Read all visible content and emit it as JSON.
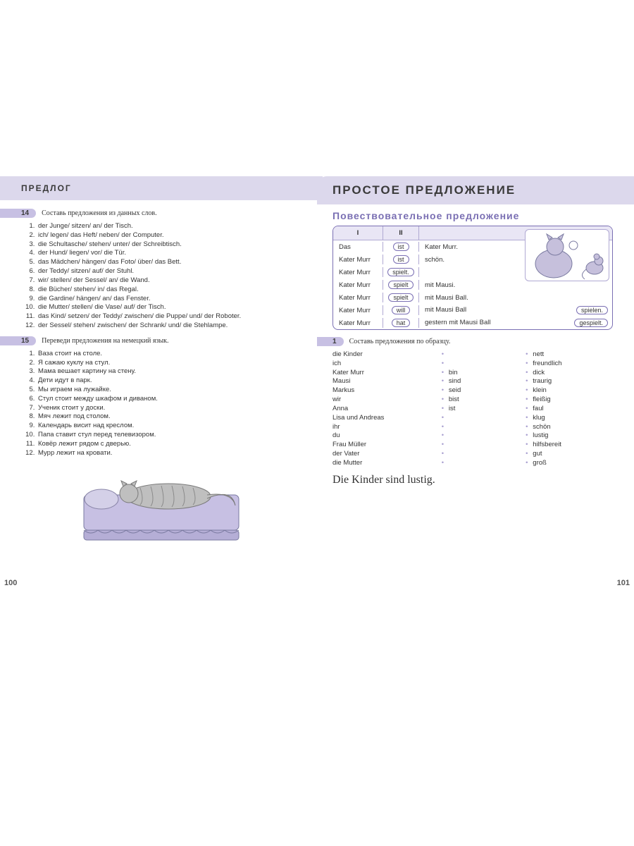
{
  "colors": {
    "band": "#dcd8ec",
    "pill": "#c7c0e3",
    "purple": "#7a6fb3",
    "headRow": "#e9e6f5"
  },
  "left": {
    "header": "ПРЕДЛОГ",
    "pageNum": "100",
    "ex14": {
      "num": "14",
      "title": "Составь предложения из данных слов.",
      "items": [
        "der Junge/ sitzen/ an/ der Tisch.",
        "ich/ legen/ das Heft/ neben/ der Computer.",
        "die Schultasche/ stehen/ unter/ der Schreibtisch.",
        "der Hund/ liegen/ vor/ die Tür.",
        "das Mädchen/ hängen/ das Foto/ über/ das Bett.",
        "der Teddy/ sitzen/ auf/ der Stuhl.",
        "wir/ stellen/ der Sessel/ an/ die Wand.",
        "die Bücher/ stehen/ in/ das Regal.",
        "die Gardine/ hängen/ an/ das Fenster.",
        "die Mutter/ stellen/ die Vase/ auf/ der Tisch.",
        "das Kind/ setzen/ der Teddy/ zwischen/ die Puppe/ und/ der Roboter.",
        "der Sessel/ stehen/ zwischen/ der Schrank/ und/ die Stehlampe."
      ]
    },
    "ex15": {
      "num": "15",
      "title": "Переведи предложения на немецкий язык.",
      "items": [
        "Ваза стоит на столе.",
        "Я сажаю куклу на стул.",
        "Мама вешает картину на стену.",
        "Дети идут в парк.",
        "Мы играем на лужайке.",
        "Стул стоит между шкафом и диваном.",
        "Ученик стоит у доски.",
        "Мяч лежит под столом.",
        "Календарь висит над креслом.",
        "Папа ставит стул перед телевизором.",
        "Ковёр лежит рядом с дверью.",
        "Мурр лежит на кровати."
      ]
    }
  },
  "right": {
    "header": "ПРОСТОЕ  ПРЕДЛОЖЕНИЕ",
    "section": "Повествовательное предложение",
    "pageNum": "101",
    "tbl": {
      "h1": "I",
      "h2": "II",
      "rows": [
        {
          "c1": "Das",
          "c2": "ist",
          "c3": "Kater Murr.",
          "c3b": ""
        },
        {
          "c1": "Kater Murr",
          "c2": "ist",
          "c3": "schön.",
          "c3b": ""
        },
        {
          "c1": "Kater Murr",
          "c2": "spielt.",
          "c3": "",
          "c3b": ""
        },
        {
          "c1": "Kater Murr",
          "c2": "spielt",
          "c3": "mit Mausi.",
          "c3b": ""
        },
        {
          "c1": "Kater Murr",
          "c2": "spielt",
          "c3": "mit Mausi Ball.",
          "c3b": ""
        },
        {
          "c1": "Kater Murr",
          "c2": "will",
          "c3": "mit Mausi Ball",
          "c3b": "spielen."
        },
        {
          "c1": "Kater Murr",
          "c2": "hat",
          "c3": "gestern mit Mausi Ball",
          "c3b": "gespielt."
        }
      ]
    },
    "ex1": {
      "num": "1",
      "title": "Составь предложения по образцу.",
      "colA": [
        "die Kinder",
        "ich",
        "Kater Murr",
        "Mausi",
        "Markus",
        "wir",
        "Anna",
        "Lisa und Andreas",
        "ihr",
        "du",
        "Frau Müller",
        "der Vater",
        "die Mutter"
      ],
      "colB": [
        "",
        "",
        "bin",
        "sind",
        "seid",
        "bist",
        "ist",
        "",
        "",
        "",
        "",
        "",
        ""
      ],
      "colC": [
        "nett",
        "freundlich",
        "dick",
        "traurig",
        "klein",
        "fleißig",
        "faul",
        "klug",
        "schön",
        "lustig",
        "hilfsbereit",
        "gut",
        "groß"
      ],
      "example": "Die Kinder sind lustig."
    }
  }
}
